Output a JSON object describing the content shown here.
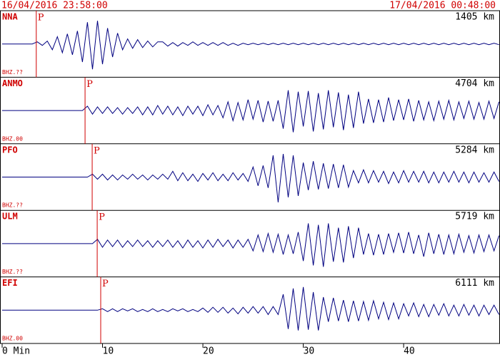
{
  "chart_data": {
    "type": "seismogram",
    "start_time": "16/04/2016 23:58:00",
    "end_time": "17/04/2016 00:48:00",
    "xlim": [
      0,
      49.6
    ],
    "xticks": [
      {
        "value": 0,
        "label": "0 Min"
      },
      10,
      20,
      30,
      40
    ],
    "ylim": [
      -46,
      46
    ],
    "x": [
      0,
      0.5,
      1,
      1.5,
      2,
      2.5,
      3,
      3.5,
      4,
      4.5,
      5,
      5.5,
      6,
      6.5,
      7,
      7.5,
      8,
      8.5,
      9,
      9.5,
      10,
      10.5,
      11,
      11.5,
      12,
      12.5,
      13,
      13.5,
      14,
      14.5,
      15,
      15.5,
      16,
      16.5,
      17,
      17.5,
      18,
      18.5,
      19,
      19.5,
      20,
      20.5,
      21,
      21.5,
      22,
      22.5,
      23,
      23.5,
      24,
      24.5,
      25,
      25.5,
      26,
      26.5,
      27,
      27.5,
      28,
      28.5,
      29,
      29.5,
      30,
      30.5,
      31,
      31.5,
      32,
      32.5,
      33,
      33.5,
      34,
      34.5,
      35,
      35.5,
      36,
      36.5,
      37,
      37.5,
      38,
      38.5,
      39,
      39.5,
      40,
      40.5,
      41,
      41.5,
      42,
      42.5,
      43,
      43.5,
      44,
      44.5,
      45,
      45.5,
      46,
      46.5,
      47,
      47.5,
      48,
      48.5,
      49,
      49.5
    ],
    "series": [
      {
        "name": "NNA",
        "distance": "1405 km",
        "channel": "BHZ.??",
        "phase": "P",
        "p_arrival": 3.4,
        "color": "#000080",
        "values": [
          0,
          0,
          0,
          0,
          0,
          0,
          0,
          3,
          -2,
          4,
          -8,
          10,
          -12,
          14,
          -15,
          18,
          -25,
          30,
          -35,
          32,
          -28,
          22,
          -18,
          15,
          -8,
          7,
          -6,
          6,
          -5,
          4,
          -4,
          3,
          3,
          -3,
          2,
          -3,
          2,
          -2,
          3,
          -2,
          2,
          -2,
          2,
          -2,
          2,
          -2,
          1,
          -2,
          1,
          -1,
          1,
          -1,
          1,
          -1,
          1,
          -1,
          1,
          -1,
          1,
          -1,
          1,
          -1,
          1,
          -1,
          1,
          -1,
          1,
          -1,
          1,
          -1,
          1,
          -1,
          1,
          -1,
          1,
          -1,
          1,
          -1,
          1,
          -1,
          1,
          -1,
          1,
          -1,
          1,
          -1,
          1,
          -1,
          1,
          -1,
          1,
          -1,
          1,
          -1,
          1,
          -1,
          1,
          -1,
          1,
          -1
        ]
      },
      {
        "name": "ANMO",
        "distance": "4704 km",
        "channel": "BHZ.00",
        "phase": "P",
        "p_arrival": 8.26,
        "color": "#000080",
        "values": [
          0,
          0,
          0,
          0,
          0,
          0,
          0,
          0,
          0,
          0,
          0,
          0,
          0,
          0,
          0,
          0,
          0,
          6,
          -5,
          5,
          -4,
          5,
          -4,
          4,
          -5,
          4,
          -4,
          5,
          -6,
          5,
          -6,
          7,
          -5,
          6,
          -6,
          5,
          -7,
          6,
          -5,
          6,
          -7,
          8,
          -6,
          7,
          -10,
          12,
          -14,
          11,
          -13,
          15,
          -12,
          14,
          -16,
          13,
          -15,
          14,
          -25,
          28,
          -30,
          26,
          -22,
          27,
          -29,
          24,
          -26,
          28,
          -23,
          25,
          -27,
          22,
          -24,
          26,
          -18,
          16,
          -17,
          15,
          -16,
          18,
          -14,
          15,
          -13,
          16,
          -15,
          14,
          -13,
          12,
          -14,
          13,
          -12,
          14,
          -13,
          12,
          -11,
          13,
          -12,
          11,
          -12,
          13,
          -11,
          12
        ]
      },
      {
        "name": "PFO",
        "distance": "5284 km",
        "channel": "BHZ.??",
        "phase": "P",
        "p_arrival": 8.97,
        "color": "#000080",
        "values": [
          0,
          0,
          0,
          0,
          0,
          0,
          0,
          0,
          0,
          0,
          0,
          0,
          0,
          0,
          0,
          0,
          0,
          0,
          4,
          -3,
          4,
          -4,
          3,
          -4,
          3,
          -3,
          4,
          -3,
          3,
          -4,
          3,
          -3,
          4,
          -3,
          8,
          -5,
          6,
          -5,
          4,
          -6,
          5,
          -4,
          6,
          -5,
          4,
          -5,
          6,
          -4,
          5,
          -6,
          14,
          -12,
          16,
          -15,
          30,
          -35,
          32,
          -28,
          30,
          -26,
          20,
          -18,
          22,
          -17,
          19,
          -16,
          18,
          -15,
          17,
          -14,
          9,
          -8,
          10,
          -8,
          9,
          -7,
          8,
          -9,
          7,
          -8,
          9,
          -7,
          8,
          -7,
          8,
          -8,
          7,
          -8,
          7,
          -7,
          8,
          -7,
          7,
          -8,
          7,
          -7,
          6,
          -7,
          7,
          -6
        ]
      },
      {
        "name": "ULM",
        "distance": "5719 km",
        "channel": "BHZ.??",
        "phase": "P",
        "p_arrival": 9.47,
        "color": "#000080",
        "values": [
          0,
          0,
          0,
          0,
          0,
          0,
          0,
          0,
          0,
          0,
          0,
          0,
          0,
          0,
          0,
          0,
          0,
          0,
          0,
          6,
          -5,
          5,
          -4,
          5,
          -5,
          4,
          -4,
          5,
          -4,
          4,
          -5,
          4,
          -4,
          5,
          -5,
          4,
          -6,
          5,
          -5,
          4,
          -6,
          5,
          -5,
          6,
          -4,
          5,
          -6,
          5,
          -5,
          6,
          -10,
          12,
          -11,
          14,
          -12,
          13,
          -15,
          12,
          -14,
          16,
          -24,
          28,
          -30,
          26,
          -32,
          28,
          -25,
          22,
          -26,
          24,
          -20,
          22,
          -15,
          14,
          -16,
          13,
          -15,
          14,
          -12,
          15,
          -13,
          16,
          -14,
          12,
          -18,
          15,
          -14,
          13,
          -15,
          12,
          -14,
          13,
          -12,
          11,
          -13,
          12,
          -11,
          12,
          -10,
          11
        ]
      },
      {
        "name": "EFI",
        "distance": "6111 km",
        "channel": "BHZ.00",
        "phase": "P",
        "p_arrival": 9.82,
        "color": "#000080",
        "values": [
          0,
          0,
          0,
          0,
          0,
          0,
          0,
          0,
          0,
          0,
          0,
          0,
          0,
          0,
          0,
          0,
          0,
          0,
          0,
          0,
          2,
          -2,
          2,
          -2,
          2,
          -1,
          2,
          -2,
          1,
          -2,
          2,
          -2,
          1,
          -2,
          2,
          -1,
          2,
          -2,
          1,
          -2,
          3,
          -3,
          4,
          -3,
          4,
          -4,
          3,
          -5,
          4,
          -4,
          5,
          -4,
          5,
          -6,
          5,
          -6,
          22,
          -26,
          30,
          -28,
          32,
          -27,
          25,
          -28,
          18,
          -16,
          17,
          -15,
          14,
          -16,
          13,
          -15,
          12,
          -14,
          13,
          -12,
          11,
          -13,
          10,
          -12,
          9,
          -8,
          10,
          -9,
          8,
          -9,
          8,
          -7,
          9,
          -8,
          7,
          -8,
          8,
          -7,
          7,
          -8,
          7,
          -6,
          7,
          -6
        ]
      }
    ]
  }
}
